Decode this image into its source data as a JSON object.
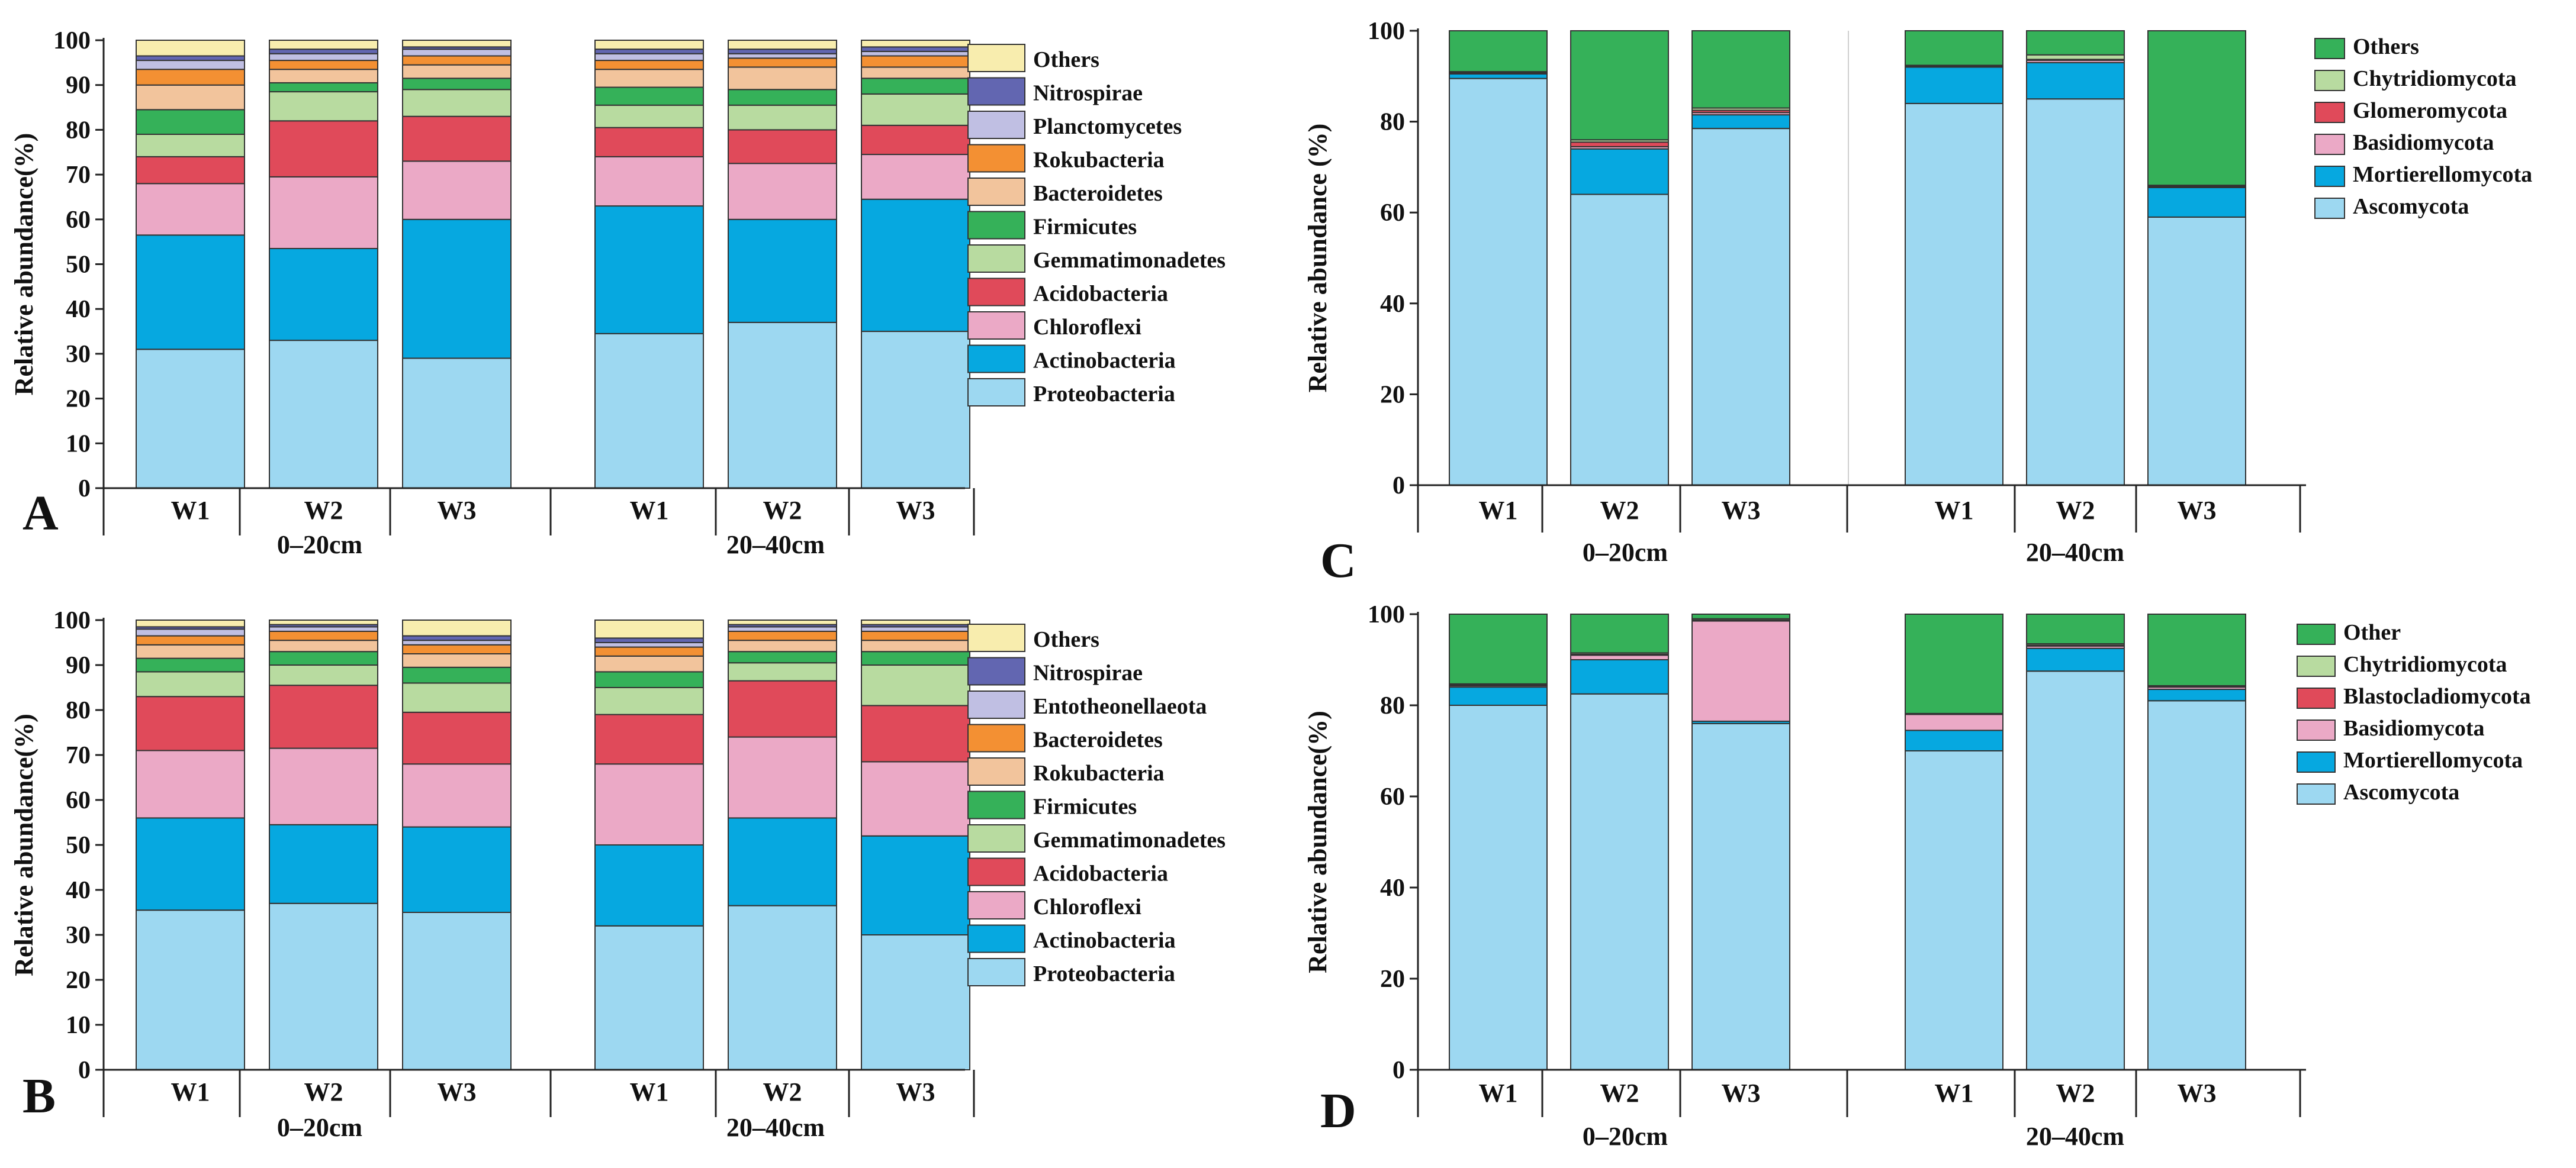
{
  "figure": {
    "description_free": true,
    "panels_order": [
      "A",
      "B",
      "C",
      "D"
    ]
  },
  "chart_data": [
    {
      "panel": "A",
      "type": "bar",
      "stacked": true,
      "title": "",
      "xlabel": "",
      "ylabel": "Relative abundance(%)",
      "ylim": [
        0,
        100
      ],
      "yticks": [
        0,
        10,
        20,
        30,
        40,
        50,
        60,
        70,
        80,
        90,
        100
      ],
      "categories": [
        "W1",
        "W2",
        "W3",
        "W1",
        "W2",
        "W3"
      ],
      "groups": [
        {
          "label": "0–20cm",
          "count": 3
        },
        {
          "label": "20–40cm",
          "count": 3
        }
      ],
      "series": [
        {
          "name": "Proteobacteria",
          "color": "#9dd8f1",
          "values": [
            31,
            33,
            29,
            34.5,
            37,
            35
          ]
        },
        {
          "name": "Actinobacteria",
          "color": "#06a8e0",
          "values": [
            25.5,
            20.5,
            31,
            28.5,
            23,
            29.5
          ]
        },
        {
          "name": "Chloroflexi",
          "color": "#eba9c6",
          "values": [
            11.5,
            16,
            13,
            11,
            12.5,
            10
          ]
        },
        {
          "name": "Acidobacteria",
          "color": "#e04a5a",
          "values": [
            6,
            12.5,
            10,
            6.5,
            7.5,
            6.5
          ]
        },
        {
          "name": "Gemmatimonadetes",
          "color": "#b8dba0",
          "values": [
            5,
            6.5,
            6,
            5,
            5.5,
            7
          ]
        },
        {
          "name": "Firmicutes",
          "color": "#35b159",
          "values": [
            5.5,
            2,
            2.5,
            4,
            3.5,
            3.5
          ]
        },
        {
          "name": "Bacteroidetes",
          "color": "#f2c49c",
          "values": [
            5.5,
            3,
            3,
            4,
            5,
            2.5
          ]
        },
        {
          "name": "Rokubacteria",
          "color": "#f39033",
          "values": [
            3.5,
            2,
            2,
            2,
            2,
            2.5
          ]
        },
        {
          "name": "Planctomycetes",
          "color": "#c0bfe3",
          "values": [
            2,
            1.5,
            1.5,
            1.5,
            1,
            1
          ]
        },
        {
          "name": "Nitrospirae",
          "color": "#6266b1",
          "values": [
            1,
            1,
            0.5,
            1,
            1,
            1
          ]
        },
        {
          "name": "Others",
          "color": "#f8edae",
          "values": [
            3.5,
            2,
            1.5,
            2,
            2,
            1.5
          ]
        }
      ]
    },
    {
      "panel": "B",
      "type": "bar",
      "stacked": true,
      "title": "",
      "xlabel": "",
      "ylabel": "Relative abundance(%)",
      "ylim": [
        0,
        100
      ],
      "yticks": [
        0,
        10,
        20,
        30,
        40,
        50,
        60,
        70,
        80,
        90,
        100
      ],
      "categories": [
        "W1",
        "W2",
        "W3",
        "W1",
        "W2",
        "W3"
      ],
      "groups": [
        {
          "label": "0–20cm",
          "count": 3
        },
        {
          "label": "20–40cm",
          "count": 3
        }
      ],
      "series": [
        {
          "name": "Proteobacteria",
          "color": "#9dd8f1",
          "values": [
            35.5,
            37,
            35,
            32,
            36.5,
            30
          ]
        },
        {
          "name": "Actinobacteria",
          "color": "#06a8e0",
          "values": [
            20.5,
            17.5,
            19,
            18,
            19.5,
            22
          ]
        },
        {
          "name": "Chloroflexi",
          "color": "#eba9c6",
          "values": [
            15,
            17,
            14,
            18,
            18,
            16.5
          ]
        },
        {
          "name": "Acidobacteria",
          "color": "#e04a5a",
          "values": [
            12,
            14,
            11.5,
            11,
            12.5,
            12.5
          ]
        },
        {
          "name": "Gemmatimonadetes",
          "color": "#b8dba0",
          "values": [
            5.5,
            4.5,
            6.5,
            6,
            4,
            9
          ]
        },
        {
          "name": "Firmicutes",
          "color": "#35b159",
          "values": [
            3,
            3,
            3.5,
            3.5,
            2.5,
            3
          ]
        },
        {
          "name": "Rokubacteria",
          "color": "#f2c49c",
          "values": [
            3,
            2.5,
            3,
            3.5,
            2.5,
            2.5
          ]
        },
        {
          "name": "Bacteroidetes",
          "color": "#f39033",
          "values": [
            2,
            2,
            2,
            2,
            2,
            2
          ]
        },
        {
          "name": "Entotheonellaeota",
          "color": "#c0bfe3",
          "values": [
            1.5,
            1,
            1,
            1,
            1,
            1
          ]
        },
        {
          "name": "Nitrospirae",
          "color": "#6266b1",
          "values": [
            0.5,
            0.5,
            1,
            1,
            0.5,
            0.5
          ]
        },
        {
          "name": "Others",
          "color": "#f8edae",
          "values": [
            1.5,
            1,
            3.5,
            4,
            1,
            1
          ]
        }
      ]
    },
    {
      "panel": "C",
      "type": "bar",
      "stacked": true,
      "title": "",
      "xlabel": "",
      "ylabel": "Relative abundance (%)",
      "ylim": [
        0,
        100
      ],
      "yticks": [
        0,
        20,
        40,
        60,
        80,
        100
      ],
      "categories": [
        "W1",
        "W2",
        "W3",
        "W1",
        "W2",
        "W3"
      ],
      "groups": [
        {
          "label": "0–20cm",
          "count": 3
        },
        {
          "label": "20–40cm",
          "count": 3
        }
      ],
      "series": [
        {
          "name": "Ascomycota",
          "color": "#9dd8f1",
          "values": [
            89.5,
            64,
            78.5,
            84,
            85,
            59
          ]
        },
        {
          "name": "Mortierellomycota",
          "color": "#06a8e0",
          "values": [
            1,
            10,
            3,
            8,
            8,
            6.5
          ]
        },
        {
          "name": "Basidiomycota",
          "color": "#eba9c6",
          "values": [
            0.2,
            0.5,
            0.5,
            0.2,
            0.5,
            0.2
          ]
        },
        {
          "name": "Glomeromycota",
          "color": "#e04a5a",
          "values": [
            0.2,
            1,
            0.5,
            0.1,
            0.2,
            0.1
          ]
        },
        {
          "name": "Chytridiomycota",
          "color": "#b8dba0",
          "values": [
            0.1,
            0.5,
            0.5,
            0.1,
            1,
            0.2
          ]
        },
        {
          "name": "Others",
          "color": "#35b159",
          "values": [
            9,
            24,
            17,
            7.6,
            5.3,
            34
          ]
        }
      ]
    },
    {
      "panel": "D",
      "type": "bar",
      "stacked": true,
      "title": "",
      "xlabel": "",
      "ylabel": "Relative abundance(%)",
      "ylim": [
        0,
        100
      ],
      "yticks": [
        0,
        20,
        40,
        60,
        80,
        100
      ],
      "categories": [
        "W1",
        "W2",
        "W3",
        "W1",
        "W2",
        "W3"
      ],
      "groups": [
        {
          "label": "0–20cm",
          "count": 3
        },
        {
          "label": "20–40cm",
          "count": 3
        }
      ],
      "series": [
        {
          "name": "Ascomycota",
          "color": "#9dd8f1",
          "values": [
            80,
            82.5,
            76,
            70,
            87.5,
            81
          ]
        },
        {
          "name": "Mortierellomycota",
          "color": "#06a8e0",
          "values": [
            4,
            7.5,
            0.5,
            4.5,
            5,
            2.5
          ]
        },
        {
          "name": "Basidiomycota",
          "color": "#eba9c6",
          "values": [
            0.3,
            1,
            22,
            3.5,
            0.5,
            0.5
          ]
        },
        {
          "name": "Blastocladiomycota",
          "color": "#e04a5a",
          "values": [
            0.2,
            0.2,
            0.2,
            0.1,
            0.2,
            0.1
          ]
        },
        {
          "name": "Chytridiomycota",
          "color": "#b8dba0",
          "values": [
            0.2,
            0.3,
            0.3,
            0.1,
            0.3,
            0.2
          ]
        },
        {
          "name": "Other",
          "color": "#35b159",
          "values": [
            15.3,
            8.5,
            1,
            21.8,
            6.5,
            15.7
          ]
        }
      ]
    }
  ]
}
